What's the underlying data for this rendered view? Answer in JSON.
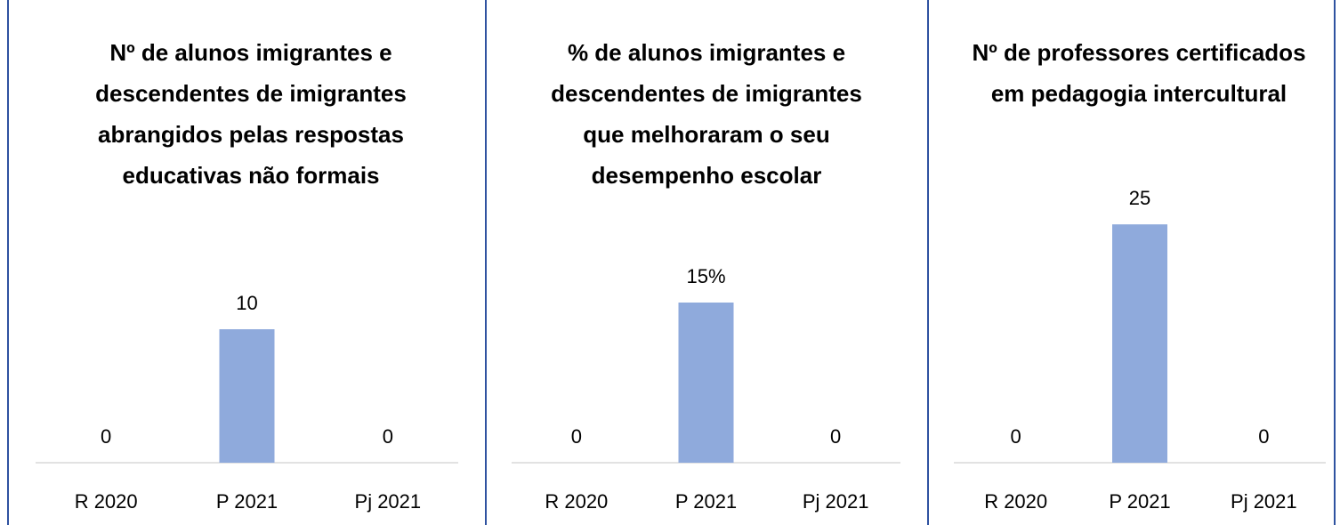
{
  "chart_data": [
    {
      "type": "bar",
      "title": "Nº de alunos imigrantes e descendentes de imigrantes abrangidos pelas respostas educativas não formais",
      "categories": [
        "R 2020",
        "P 2021",
        "Pj 2021"
      ],
      "values": [
        0,
        10,
        0
      ],
      "color": "#8faadc",
      "ylim": [
        0,
        20
      ]
    },
    {
      "type": "bar",
      "title": "% de alunos imigrantes e descendentes de imigrantes que melhoraram o seu desempenho escolar",
      "categories": [
        "R 2020",
        "P 2021",
        "Pj 2021"
      ],
      "values": [
        0,
        15,
        0
      ],
      "value_labels": [
        "0",
        "15%",
        "0"
      ],
      "color": "#8faadc",
      "ylim": [
        0,
        25
      ]
    },
    {
      "type": "bar",
      "title": "Nº de professores certificados em pedagogia intercultural",
      "categories": [
        "R 2020",
        "P 2021",
        "Pj 2021"
      ],
      "values": [
        0,
        25,
        0
      ],
      "color": "#8faadc",
      "ylim": [
        0,
        28
      ]
    }
  ]
}
